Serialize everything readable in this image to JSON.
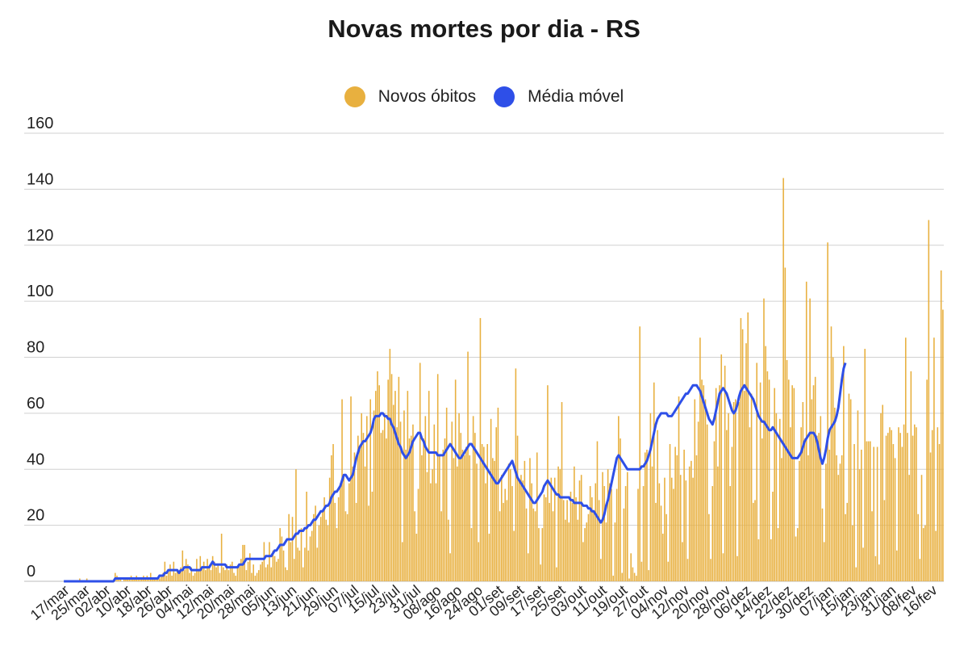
{
  "chart_data": {
    "type": "bar",
    "title": "Novas mortes por dia - RS",
    "xlabel": "",
    "ylabel": "",
    "ylim": [
      0,
      160
    ],
    "yticks": [
      0,
      20,
      40,
      60,
      80,
      100,
      120,
      140,
      160
    ],
    "grid": true,
    "legend_position": "top-center",
    "x_tick_labels": [
      "17/mar",
      "25/mar",
      "02/abr",
      "10/abr",
      "18/abr",
      "26/abr",
      "04/mai",
      "12/mai",
      "20/mai",
      "28/mai",
      "05/jun",
      "13/jun",
      "21/jun",
      "29/jun",
      "07/jul",
      "15/jul",
      "23/jul",
      "31/jul",
      "08/ago",
      "16/ago",
      "24/ago",
      "01/set",
      "09/set",
      "17/set",
      "25/set",
      "03/out",
      "11/out",
      "19/out",
      "27/out",
      "04/nov",
      "12/nov",
      "20/nov",
      "28/nov",
      "06/dez",
      "14/dez",
      "22/dez",
      "30/dez",
      "07/jan",
      "15/jan",
      "23/jan",
      "31/jan",
      "08/fev",
      "16/fev"
    ],
    "series": [
      {
        "name": "Novos óbitos",
        "type": "bar",
        "color": "#E8B03F",
        "values": [
          0,
          0,
          0,
          0,
          0,
          0,
          0,
          0,
          0,
          1,
          0,
          0,
          0,
          1,
          0,
          0,
          0,
          0,
          0,
          0,
          0,
          0,
          0,
          0,
          0,
          0,
          0,
          0,
          0,
          3,
          2,
          1,
          1,
          0,
          1,
          1,
          1,
          1,
          2,
          1,
          1,
          2,
          1,
          1,
          1,
          2,
          1,
          2,
          1,
          3,
          1,
          1,
          1,
          1,
          1,
          2,
          3,
          7,
          2,
          4,
          6,
          2,
          7,
          3,
          4,
          3,
          5,
          11,
          4,
          8,
          6,
          3,
          5,
          2,
          3,
          8,
          4,
          9,
          5,
          7,
          4,
          8,
          5,
          4,
          9,
          7,
          5,
          6,
          3,
          17,
          5,
          4,
          6,
          4,
          6,
          7,
          3,
          2,
          5,
          6,
          8,
          13,
          13,
          4,
          7,
          10,
          3,
          6,
          2,
          3,
          4,
          6,
          7,
          14,
          5,
          6,
          14,
          5,
          11,
          9,
          7,
          8,
          19,
          16,
          11,
          5,
          4,
          24,
          14,
          23,
          8,
          40,
          12,
          11,
          19,
          5,
          12,
          32,
          11,
          16,
          18,
          24,
          27,
          12,
          20,
          23,
          25,
          30,
          22,
          20,
          37,
          45,
          49,
          28,
          19,
          30,
          35,
          65,
          38,
          25,
          24,
          35,
          66,
          41,
          46,
          28,
          52,
          47,
          60,
          53,
          41,
          59,
          27,
          65,
          32,
          61,
          68,
          75,
          70,
          53,
          54,
          60,
          51,
          72,
          83,
          74,
          63,
          68,
          55,
          73,
          57,
          14,
          61,
          47,
          68,
          51,
          52,
          56,
          25,
          17,
          33,
          78,
          45,
          51,
          59,
          39,
          68,
          35,
          40,
          56,
          35,
          74,
          45,
          25,
          47,
          51,
          62,
          22,
          10,
          57,
          44,
          72,
          41,
          60,
          53,
          47,
          45,
          48,
          82,
          45,
          19,
          59,
          53,
          42,
          14,
          94,
          49,
          48,
          35,
          49,
          17,
          58,
          44,
          43,
          55,
          62,
          25,
          38,
          28,
          33,
          29,
          42,
          40,
          34,
          18,
          76,
          52,
          36,
          38,
          36,
          43,
          26,
          10,
          44,
          35,
          26,
          25,
          46,
          19,
          6,
          19,
          31,
          30,
          70,
          28,
          37,
          25,
          37,
          5,
          41,
          40,
          64,
          29,
          22,
          29,
          21,
          32,
          28,
          41,
          30,
          22,
          36,
          38,
          14,
          19,
          21,
          24,
          34,
          30,
          25,
          35,
          50,
          29,
          8,
          39,
          34,
          21,
          40,
          35,
          33,
          2,
          21,
          33,
          59,
          51,
          3,
          26,
          34,
          39,
          1,
          10,
          5,
          3,
          2,
          33,
          91,
          7,
          34,
          46,
          47,
          4,
          60,
          41,
          71,
          28,
          54,
          35,
          27,
          17,
          37,
          24,
          7,
          49,
          37,
          33,
          48,
          45,
          66,
          38,
          14,
          47,
          36,
          8,
          41,
          43,
          37,
          65,
          45,
          57,
          87,
          72,
          70,
          65,
          56,
          24,
          8,
          34,
          50,
          69,
          41,
          70,
          81,
          10,
          77,
          54,
          60,
          34,
          48,
          64,
          65,
          9,
          64,
          94,
          90,
          68,
          85,
          96,
          55,
          67,
          28,
          29,
          78,
          15,
          71,
          51,
          101,
          84,
          75,
          72,
          15,
          32,
          69,
          60,
          19,
          58,
          44,
          144,
          112,
          79,
          72,
          55,
          70,
          69,
          16,
          19,
          43,
          55,
          64,
          51,
          107,
          45,
          101,
          65,
          70,
          73,
          52,
          53,
          59,
          26,
          14,
          42,
          121,
          47,
          91,
          80,
          62,
          45,
          38,
          42,
          45,
          84,
          24,
          28,
          67,
          65,
          20,
          49,
          5,
          61,
          40,
          47,
          12,
          83,
          50,
          50,
          50,
          25,
          48,
          9,
          48,
          6,
          60,
          63,
          29,
          52,
          53,
          55,
          54,
          49,
          44,
          11,
          55,
          53,
          48,
          56,
          87,
          53,
          38,
          75,
          52,
          56,
          55,
          24,
          8,
          38,
          19,
          20,
          72,
          129,
          46,
          54,
          87,
          18,
          55,
          49,
          111,
          97
        ]
      },
      {
        "name": "Média móvel",
        "type": "line",
        "color": "#2E4FE8",
        "values": [
          0,
          0,
          0,
          0,
          0,
          0,
          0,
          0,
          0,
          0,
          0,
          0,
          0,
          0,
          0,
          0,
          0,
          0,
          0,
          0,
          0,
          0,
          0,
          0,
          0,
          0,
          0,
          0,
          0,
          1,
          1,
          1,
          1,
          1,
          1,
          1,
          1,
          1,
          1,
          1,
          1,
          1,
          1,
          1,
          1,
          1,
          1,
          1,
          1,
          1,
          1,
          1,
          1,
          1,
          2,
          2,
          2,
          3,
          3,
          4,
          4,
          4,
          4,
          4,
          4,
          3,
          4,
          4,
          5,
          5,
          5,
          5,
          4,
          4,
          4,
          4,
          4,
          4,
          5,
          5,
          5,
          5,
          5,
          6,
          7,
          6,
          6,
          6,
          6,
          6,
          6,
          6,
          5,
          5,
          5,
          5,
          5,
          5,
          5,
          6,
          6,
          6,
          7,
          8,
          8,
          8,
          8,
          8,
          8,
          8,
          8,
          8,
          8,
          8,
          9,
          9,
          9,
          9,
          10,
          11,
          11,
          12,
          13,
          13,
          13,
          14,
          15,
          15,
          15,
          15,
          16,
          17,
          17,
          18,
          18,
          18,
          19,
          19,
          20,
          20,
          21,
          22,
          22,
          23,
          24,
          25,
          25,
          26,
          27,
          27,
          28,
          30,
          31,
          32,
          32,
          33,
          34,
          36,
          38,
          38,
          37,
          36,
          37,
          38,
          41,
          44,
          46,
          48,
          49,
          50,
          50,
          51,
          52,
          53,
          55,
          58,
          59,
          59,
          59,
          60,
          60,
          59,
          59,
          58,
          58,
          56,
          55,
          53,
          51,
          49,
          48,
          46,
          45,
          44,
          45,
          46,
          48,
          50,
          51,
          52,
          53,
          53,
          51,
          50,
          48,
          47,
          46,
          46,
          46,
          46,
          46,
          45,
          45,
          45,
          45,
          46,
          47,
          48,
          49,
          48,
          47,
          46,
          45,
          44,
          44,
          45,
          46,
          47,
          48,
          49,
          49,
          48,
          47,
          46,
          45,
          44,
          43,
          42,
          41,
          40,
          39,
          38,
          37,
          36,
          35,
          35,
          36,
          37,
          38,
          39,
          40,
          41,
          42,
          43,
          41,
          39,
          37,
          36,
          35,
          34,
          33,
          32,
          31,
          30,
          29,
          28,
          28,
          29,
          30,
          31,
          32,
          34,
          35,
          36,
          35,
          34,
          33,
          32,
          31,
          31,
          30,
          30,
          30,
          30,
          30,
          30,
          29,
          29,
          28,
          28,
          28,
          28,
          28,
          27,
          27,
          27,
          26,
          26,
          25,
          25,
          24,
          23,
          22,
          21,
          22,
          24,
          27,
          29,
          32,
          35,
          38,
          41,
          44,
          45,
          44,
          43,
          42,
          41,
          40,
          40,
          40,
          40,
          40,
          40,
          40,
          40,
          41,
          41,
          42,
          43,
          45,
          47,
          50,
          53,
          56,
          58,
          59,
          60,
          60,
          60,
          60,
          59,
          59,
          59,
          60,
          61,
          62,
          63,
          64,
          65,
          66,
          67,
          67,
          68,
          69,
          70,
          70,
          70,
          69,
          68,
          66,
          64,
          62,
          60,
          58,
          57,
          56,
          58,
          61,
          64,
          67,
          68,
          69,
          68,
          67,
          65,
          63,
          61,
          60,
          61,
          63,
          66,
          68,
          69,
          70,
          69,
          68,
          67,
          66,
          65,
          63,
          61,
          59,
          58,
          57,
          57,
          56,
          55,
          54,
          54,
          55,
          54,
          53,
          52,
          51,
          50,
          49,
          48,
          47,
          46,
          45,
          44,
          44,
          44,
          44,
          45,
          46,
          48,
          50,
          51,
          52,
          53,
          53,
          53,
          52,
          50,
          47,
          44,
          42,
          44,
          47,
          51,
          54,
          55,
          56,
          57,
          59,
          62,
          67,
          72,
          76,
          78
        ]
      }
    ]
  }
}
